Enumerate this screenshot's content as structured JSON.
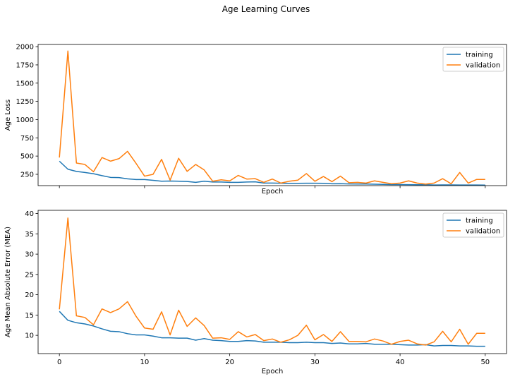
{
  "figure": {
    "title": "Age Learning Curves",
    "colors": {
      "training": "#1f77b4",
      "validation": "#ff7f0e"
    }
  },
  "chart_data": [
    {
      "type": "line",
      "title": "",
      "xlabel": "Epoch",
      "ylabel": "Age Loss",
      "xlim": [
        -2.5,
        52.5
      ],
      "ylim": [
        95,
        2030
      ],
      "xticks": [
        0,
        10,
        20,
        30,
        40,
        50
      ],
      "show_xtick_labels": false,
      "yticks": [
        250,
        500,
        750,
        1000,
        1250,
        1500,
        1750,
        2000
      ],
      "ytick_labels": [
        "250",
        "500",
        "750",
        "1000",
        "1250",
        "1500",
        "1750",
        "2000"
      ],
      "grid": false,
      "legend": "top-right",
      "x": [
        0,
        1,
        2,
        3,
        4,
        5,
        6,
        7,
        8,
        9,
        10,
        11,
        12,
        13,
        14,
        15,
        16,
        17,
        18,
        19,
        20,
        21,
        22,
        23,
        24,
        25,
        26,
        27,
        28,
        29,
        30,
        31,
        32,
        33,
        34,
        35,
        36,
        37,
        38,
        39,
        40,
        41,
        42,
        43,
        44,
        45,
        46,
        47,
        48,
        49,
        50
      ],
      "series": [
        {
          "name": "training",
          "color": "#1f77b4",
          "values": [
            430,
            320,
            290,
            275,
            258,
            232,
            208,
            205,
            188,
            178,
            178,
            168,
            155,
            158,
            155,
            152,
            140,
            155,
            145,
            145,
            140,
            140,
            145,
            147,
            130,
            130,
            128,
            127,
            127,
            128,
            128,
            127,
            120,
            122,
            118,
            117,
            117,
            114,
            112,
            110,
            110,
            108,
            107,
            108,
            104,
            105,
            105,
            103,
            104,
            103,
            102
          ]
        },
        {
          "name": "validation",
          "color": "#ff7f0e",
          "values": [
            480,
            1940,
            405,
            385,
            285,
            480,
            430,
            465,
            565,
            400,
            225,
            250,
            455,
            170,
            470,
            290,
            385,
            310,
            155,
            175,
            160,
            235,
            185,
            190,
            140,
            185,
            130,
            155,
            170,
            260,
            155,
            220,
            150,
            225,
            135,
            140,
            130,
            160,
            140,
            120,
            130,
            160,
            130,
            115,
            130,
            190,
            120,
            275,
            130,
            180,
            180
          ]
        }
      ]
    },
    {
      "type": "line",
      "title": "",
      "xlabel": "Epoch",
      "ylabel": "Age Mean Absolute Error (MEA)",
      "xlim": [
        -2.5,
        52.5
      ],
      "ylim": [
        5.5,
        40.8
      ],
      "xticks": [
        0,
        10,
        20,
        30,
        40,
        50
      ],
      "xtick_labels": [
        "0",
        "10",
        "20",
        "30",
        "40",
        "50"
      ],
      "show_xtick_labels": true,
      "yticks": [
        10,
        15,
        20,
        25,
        30,
        35,
        40
      ],
      "ytick_labels": [
        "10",
        "15",
        "20",
        "25",
        "30",
        "35",
        "40"
      ],
      "grid": false,
      "legend": "top-right",
      "x": [
        0,
        1,
        2,
        3,
        4,
        5,
        6,
        7,
        8,
        9,
        10,
        11,
        12,
        13,
        14,
        15,
        16,
        17,
        18,
        19,
        20,
        21,
        22,
        23,
        24,
        25,
        26,
        27,
        28,
        29,
        30,
        31,
        32,
        33,
        34,
        35,
        36,
        37,
        38,
        39,
        40,
        41,
        42,
        43,
        44,
        45,
        46,
        47,
        48,
        49,
        50
      ],
      "series": [
        {
          "name": "training",
          "color": "#1f77b4",
          "values": [
            15.9,
            13.7,
            13.1,
            12.8,
            12.3,
            11.6,
            11.0,
            10.9,
            10.4,
            10.1,
            10.1,
            9.8,
            9.4,
            9.4,
            9.3,
            9.3,
            8.8,
            9.2,
            8.8,
            8.7,
            8.5,
            8.5,
            8.7,
            8.6,
            8.3,
            8.3,
            8.3,
            8.2,
            8.2,
            8.3,
            8.2,
            8.2,
            8.0,
            8.1,
            7.9,
            7.9,
            8.0,
            7.8,
            7.8,
            7.8,
            7.7,
            7.6,
            7.6,
            7.7,
            7.4,
            7.5,
            7.5,
            7.4,
            7.4,
            7.3,
            7.3
          ]
        },
        {
          "name": "validation",
          "color": "#ff7f0e",
          "values": [
            16.4,
            38.9,
            14.8,
            14.4,
            12.6,
            16.5,
            15.6,
            16.5,
            18.3,
            14.7,
            11.8,
            11.5,
            15.8,
            10.1,
            16.2,
            12.2,
            14.3,
            12.4,
            9.3,
            9.4,
            9.0,
            10.9,
            9.6,
            10.2,
            8.7,
            9.1,
            8.3,
            8.9,
            10.0,
            12.5,
            8.9,
            10.2,
            8.5,
            10.9,
            8.5,
            8.5,
            8.4,
            9.1,
            8.6,
            7.8,
            8.5,
            8.8,
            7.9,
            7.6,
            8.4,
            11.0,
            8.4,
            11.5,
            7.8,
            10.5,
            10.5
          ]
        }
      ]
    }
  ]
}
